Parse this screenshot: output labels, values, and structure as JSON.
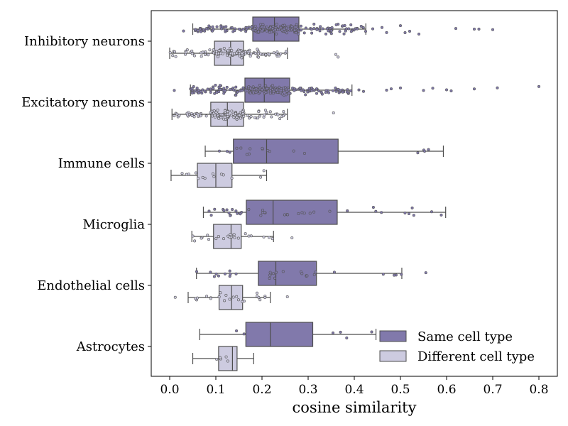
{
  "chart_data": {
    "type": "box",
    "orientation": "horizontal",
    "title": "",
    "xlabel": "cosine similarity",
    "ylabel": "",
    "xlim": [
      -0.04,
      0.84
    ],
    "xticks": [
      0.0,
      0.1,
      0.2,
      0.3,
      0.4,
      0.5,
      0.6,
      0.7,
      0.8
    ],
    "xtick_labels": [
      "0.0",
      "0.1",
      "0.2",
      "0.3",
      "0.4",
      "0.5",
      "0.6",
      "0.7",
      "0.8"
    ],
    "grid": false,
    "legend": {
      "placement": "lower-right",
      "entries": [
        {
          "label": "Same cell type",
          "color": "#8179ab"
        },
        {
          "label": "Different cell type",
          "color": "#cdcbe0"
        }
      ]
    },
    "categories": [
      "Inhibitory neurons",
      "Excitatory neurons",
      "Immune cells",
      "Microglia",
      "Endothelial cells",
      "Astrocytes"
    ],
    "series": [
      {
        "name": "Same cell type",
        "color": "#8179ab",
        "boxes": [
          {
            "whisker_low": 0.05,
            "q1": 0.18,
            "median": 0.227,
            "q3": 0.28,
            "whisker_high": 0.425,
            "outliers_high": [
              0.44,
              0.46,
              0.47,
              0.5,
              0.51,
              0.52,
              0.54,
              0.62,
              0.66,
              0.67,
              0.7
            ],
            "outliers_low": [
              0.03
            ]
          },
          {
            "whisker_low": 0.045,
            "q1": 0.163,
            "median": 0.205,
            "q3": 0.26,
            "whisker_high": 0.395,
            "outliers_high": [
              0.41,
              0.42,
              0.47,
              0.48,
              0.5,
              0.55,
              0.57,
              0.6,
              0.61,
              0.66,
              0.71,
              0.8
            ],
            "outliers_low": [
              0.01
            ]
          },
          {
            "whisker_low": 0.077,
            "q1": 0.138,
            "median": 0.21,
            "q3": 0.365,
            "whisker_high": 0.593,
            "outliers_high": [],
            "outliers_low": []
          },
          {
            "whisker_low": 0.073,
            "q1": 0.166,
            "median": 0.224,
            "q3": 0.363,
            "whisker_high": 0.598,
            "outliers_high": [],
            "outliers_low": []
          },
          {
            "whisker_low": 0.058,
            "q1": 0.192,
            "median": 0.23,
            "q3": 0.318,
            "whisker_high": 0.503,
            "outliers_high": [
              0.555
            ],
            "outliers_low": []
          },
          {
            "whisker_low": 0.065,
            "q1": 0.165,
            "median": 0.218,
            "q3": 0.31,
            "whisker_high": 0.447,
            "outliers_high": [],
            "outliers_low": []
          }
        ]
      },
      {
        "name": "Different cell type",
        "color": "#cdcbe0",
        "boxes": [
          {
            "whisker_low": 0.0,
            "q1": 0.097,
            "median": 0.132,
            "q3": 0.16,
            "whisker_high": 0.255,
            "outliers_high": [
              0.36,
              0.365
            ],
            "outliers_low": []
          },
          {
            "whisker_low": 0.005,
            "q1": 0.089,
            "median": 0.125,
            "q3": 0.16,
            "whisker_high": 0.255,
            "outliers_high": [
              0.355
            ],
            "outliers_low": []
          },
          {
            "whisker_low": 0.003,
            "q1": 0.06,
            "median": 0.1,
            "q3": 0.135,
            "whisker_high": 0.21,
            "outliers_high": [],
            "outliers_low": []
          },
          {
            "whisker_low": 0.048,
            "q1": 0.095,
            "median": 0.133,
            "q3": 0.155,
            "whisker_high": 0.225,
            "outliers_high": [
              0.265
            ],
            "outliers_low": []
          },
          {
            "whisker_low": 0.04,
            "q1": 0.107,
            "median": 0.134,
            "q3": 0.158,
            "whisker_high": 0.218,
            "outliers_high": [
              0.255
            ],
            "outliers_low": [
              0.012
            ]
          },
          {
            "whisker_low": 0.05,
            "q1": 0.106,
            "median": 0.136,
            "q3": 0.146,
            "whisker_high": 0.182,
            "outliers_high": [],
            "outliers_low": []
          }
        ]
      }
    ]
  }
}
